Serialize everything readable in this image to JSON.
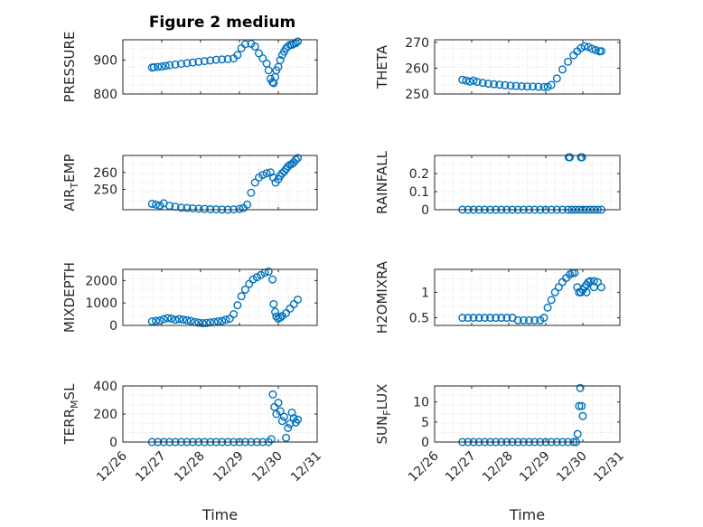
{
  "chart_data": {
    "title": "Figure 2 medium",
    "marker": "open-circle",
    "colors": {
      "marker": "#0072bd",
      "axes": "#262626",
      "grid": "#dfdfdf",
      "background": "#ffffff"
    },
    "grid": true,
    "xlabel": "Time",
    "xticks": [
      "12/26",
      "12/27",
      "12/28",
      "12/29",
      "12/30",
      "12/31"
    ],
    "xlim": [
      26,
      31
    ],
    "subplots": [
      {
        "type": "scatter",
        "ylabel": "PRESSURE",
        "ylim": [
          800,
          960
        ],
        "yticks": [
          "800",
          "900"
        ],
        "x": [
          26.75,
          26.8,
          26.9,
          27.0,
          27.1,
          27.2,
          27.35,
          27.5,
          27.65,
          27.8,
          27.95,
          28.1,
          28.25,
          28.4,
          28.55,
          28.7,
          28.85,
          28.95,
          29.05,
          29.15,
          29.3,
          29.4,
          29.5,
          29.6,
          29.7,
          29.75,
          29.8,
          29.85,
          29.88,
          29.92,
          29.95,
          30.0,
          30.05,
          30.1,
          30.15,
          30.2,
          30.25,
          30.3,
          30.35,
          30.4,
          30.45,
          30.5
        ],
        "y": [
          878,
          879,
          880,
          881,
          883,
          885,
          887,
          889,
          891,
          893,
          895,
          897,
          899,
          901,
          902,
          903,
          905,
          915,
          935,
          947,
          948,
          940,
          920,
          905,
          890,
          870,
          845,
          835,
          832,
          850,
          870,
          880,
          900,
          915,
          925,
          935,
          940,
          945,
          945,
          948,
          950,
          955
        ]
      },
      {
        "type": "scatter",
        "ylabel": "THETA",
        "ylim": [
          250,
          271
        ],
        "yticks": [
          "250",
          "260",
          "270"
        ],
        "x": [
          26.75,
          26.85,
          26.95,
          27.05,
          27.15,
          27.3,
          27.45,
          27.6,
          27.75,
          27.9,
          28.05,
          28.2,
          28.35,
          28.5,
          28.65,
          28.8,
          28.95,
          29.05,
          29.15,
          29.3,
          29.45,
          29.6,
          29.75,
          29.85,
          29.95,
          30.05,
          30.15,
          30.25,
          30.35,
          30.45,
          30.5
        ],
        "y": [
          255.5,
          255.2,
          254.8,
          255.2,
          254.7,
          254.3,
          254.0,
          253.8,
          253.6,
          253.4,
          253.2,
          253.1,
          253.0,
          252.9,
          252.9,
          252.8,
          252.7,
          252.8,
          253.5,
          256.0,
          259.5,
          262.5,
          265.0,
          266.5,
          267.8,
          268.5,
          268.2,
          267.5,
          267.0,
          266.5,
          266.6
        ]
      },
      {
        "type": "scatter",
        "ylabel": "AIR_TEMP",
        "ylim": [
          238,
          270
        ],
        "yticks": [
          "250",
          "260"
        ],
        "x": [
          26.75,
          26.85,
          26.95,
          27.05,
          27.2,
          27.35,
          27.5,
          27.65,
          27.8,
          27.95,
          28.1,
          28.25,
          28.4,
          28.55,
          28.7,
          28.85,
          29.0,
          29.1,
          29.2,
          29.3,
          29.4,
          29.5,
          29.6,
          29.7,
          29.8,
          29.87,
          29.93,
          30.0,
          30.05,
          30.1,
          30.15,
          30.2,
          30.25,
          30.3,
          30.35,
          30.4,
          30.45,
          30.5
        ],
        "y": [
          241.5,
          241.0,
          240.5,
          241.8,
          240.3,
          239.8,
          239.2,
          239.0,
          238.8,
          238.6,
          238.5,
          238.3,
          238.2,
          238.1,
          238.0,
          238.2,
          238.5,
          239.0,
          241.0,
          248.0,
          254.0,
          257.0,
          258.5,
          259.5,
          260.0,
          257.0,
          254.0,
          256.0,
          258.0,
          259.5,
          260.5,
          262.0,
          263.5,
          264.5,
          265.0,
          266.0,
          267.5,
          268.5
        ]
      },
      {
        "type": "scatter",
        "ylabel": "RAINFALL",
        "ylim": [
          0,
          0.3
        ],
        "yticks": [
          "0",
          "0.1",
          "0.2"
        ],
        "x": [
          26.75,
          26.9,
          27.05,
          27.2,
          27.35,
          27.5,
          27.65,
          27.8,
          27.95,
          28.1,
          28.25,
          28.4,
          28.55,
          28.7,
          28.85,
          29.0,
          29.15,
          29.3,
          29.45,
          29.6,
          29.7,
          29.8,
          29.9,
          30.0,
          30.1,
          30.2,
          30.3,
          30.4,
          30.5,
          29.62,
          29.65,
          29.95,
          29.98
        ],
        "y": [
          0,
          0,
          0,
          0,
          0,
          0,
          0,
          0,
          0,
          0,
          0,
          0,
          0,
          0,
          0,
          0,
          0,
          0,
          0,
          0,
          0,
          0,
          0,
          0,
          0,
          0,
          0,
          0,
          0,
          0.29,
          0.29,
          0.29,
          0.29
        ]
      },
      {
        "type": "scatter",
        "ylabel": "MIXDEPTH",
        "ylim": [
          0,
          2500
        ],
        "yticks": [
          "0",
          "1000",
          "2000"
        ],
        "x": [
          26.75,
          26.85,
          26.95,
          27.05,
          27.15,
          27.25,
          27.35,
          27.45,
          27.55,
          27.65,
          27.75,
          27.85,
          27.95,
          28.05,
          28.15,
          28.25,
          28.35,
          28.45,
          28.55,
          28.65,
          28.75,
          28.85,
          28.95,
          29.05,
          29.15,
          29.25,
          29.35,
          29.45,
          29.55,
          29.65,
          29.75,
          29.85,
          29.88,
          29.92,
          29.95,
          30.0,
          30.05,
          30.1,
          30.2,
          30.3,
          30.4,
          30.5
        ],
        "y": [
          180,
          200,
          220,
          280,
          330,
          300,
          250,
          280,
          260,
          230,
          200,
          150,
          120,
          100,
          110,
          130,
          150,
          180,
          200,
          250,
          300,
          500,
          900,
          1300,
          1600,
          1850,
          2050,
          2150,
          2250,
          2350,
          2400,
          2050,
          950,
          600,
          400,
          300,
          350,
          420,
          550,
          750,
          950,
          1150
        ]
      },
      {
        "type": "scatter",
        "ylabel": "H2OMIXRA",
        "ylim": [
          0.35,
          1.45
        ],
        "yticks": [
          "0.5",
          "1"
        ],
        "x": [
          26.75,
          26.9,
          27.05,
          27.2,
          27.35,
          27.5,
          27.65,
          27.8,
          27.95,
          28.1,
          28.25,
          28.4,
          28.55,
          28.7,
          28.85,
          28.95,
          29.05,
          29.15,
          29.25,
          29.35,
          29.45,
          29.55,
          29.65,
          29.72,
          29.78,
          29.85,
          29.9,
          29.95,
          30.0,
          30.05,
          30.1,
          30.15,
          30.2,
          30.3,
          30.4,
          30.5,
          30.1,
          30.3
        ],
        "y": [
          0.5,
          0.5,
          0.5,
          0.5,
          0.5,
          0.5,
          0.5,
          0.5,
          0.5,
          0.5,
          0.45,
          0.45,
          0.45,
          0.45,
          0.45,
          0.5,
          0.7,
          0.85,
          1.0,
          1.1,
          1.2,
          1.28,
          1.35,
          1.38,
          1.38,
          1.1,
          1.0,
          1.0,
          1.05,
          1.1,
          1.15,
          1.2,
          1.22,
          1.22,
          1.2,
          1.1,
          1.0,
          1.1
        ]
      },
      {
        "type": "scatter",
        "ylabel": "TERR_MSL",
        "ylim": [
          0,
          400
        ],
        "yticks": [
          "0",
          "200",
          "400"
        ],
        "x": [
          26.75,
          26.9,
          27.05,
          27.2,
          27.35,
          27.5,
          27.65,
          27.8,
          27.95,
          28.1,
          28.25,
          28.4,
          28.55,
          28.7,
          28.85,
          29.0,
          29.15,
          29.3,
          29.45,
          29.6,
          29.75,
          29.82,
          29.86,
          29.9,
          29.95,
          30.0,
          30.05,
          30.1,
          30.15,
          30.2,
          30.25,
          30.3,
          30.35,
          30.4,
          30.45,
          30.5
        ],
        "y": [
          0,
          0,
          0,
          0,
          0,
          0,
          0,
          0,
          0,
          0,
          0,
          0,
          0,
          0,
          0,
          0,
          0,
          0,
          0,
          0,
          0,
          20,
          340,
          250,
          200,
          280,
          220,
          150,
          180,
          30,
          100,
          130,
          210,
          170,
          140,
          160
        ]
      },
      {
        "type": "scatter",
        "ylabel": "SUN_FLUX",
        "ylim": [
          0,
          14
        ],
        "yticks": [
          "0",
          "5",
          "10"
        ],
        "x": [
          26.75,
          26.9,
          27.05,
          27.2,
          27.35,
          27.5,
          27.65,
          27.8,
          27.95,
          28.1,
          28.25,
          28.4,
          28.55,
          28.7,
          28.85,
          29.0,
          29.15,
          29.3,
          29.45,
          29.6,
          29.75,
          29.82,
          29.86,
          29.9,
          29.93,
          29.97,
          30.0
        ],
        "y": [
          0,
          0,
          0,
          0,
          0,
          0,
          0,
          0,
          0,
          0,
          0,
          0,
          0,
          0,
          0,
          0,
          0,
          0,
          0,
          0,
          0,
          0,
          2,
          9,
          13.5,
          9,
          6.5
        ]
      }
    ]
  }
}
